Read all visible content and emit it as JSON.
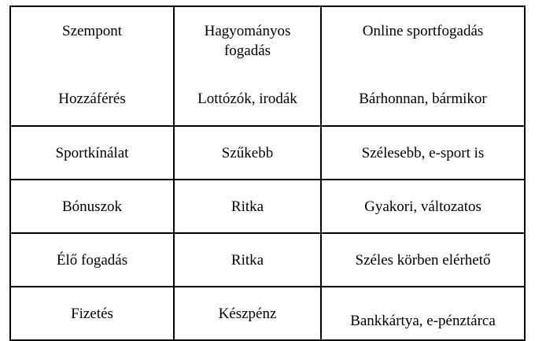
{
  "page": {
    "background": "#ffffff"
  },
  "table": {
    "border_color": "#000000",
    "text_color": "#000000",
    "header": {
      "aspect": "Szempont",
      "traditional": "Hagyományos fogadás",
      "online": "Online sportfogadás"
    },
    "rows": [
      {
        "aspect": "Hozzáférés",
        "traditional": "Lottózók, irodák",
        "online": "Bárhonnan, bármikor"
      },
      {
        "aspect": "Sportkínálat",
        "traditional": "Szűkebb",
        "online": "Szélesebb, e-sport is"
      },
      {
        "aspect": "Bónuszok",
        "traditional": "Ritka",
        "online": "Gyakori, változatos"
      },
      {
        "aspect": "Élő fogadás",
        "traditional": "Ritka",
        "online": "Széles körben elérhető"
      },
      {
        "aspect": "Fizetés",
        "traditional": "Készpénz",
        "online": "Bankkártya, e-pénztárca"
      }
    ]
  }
}
